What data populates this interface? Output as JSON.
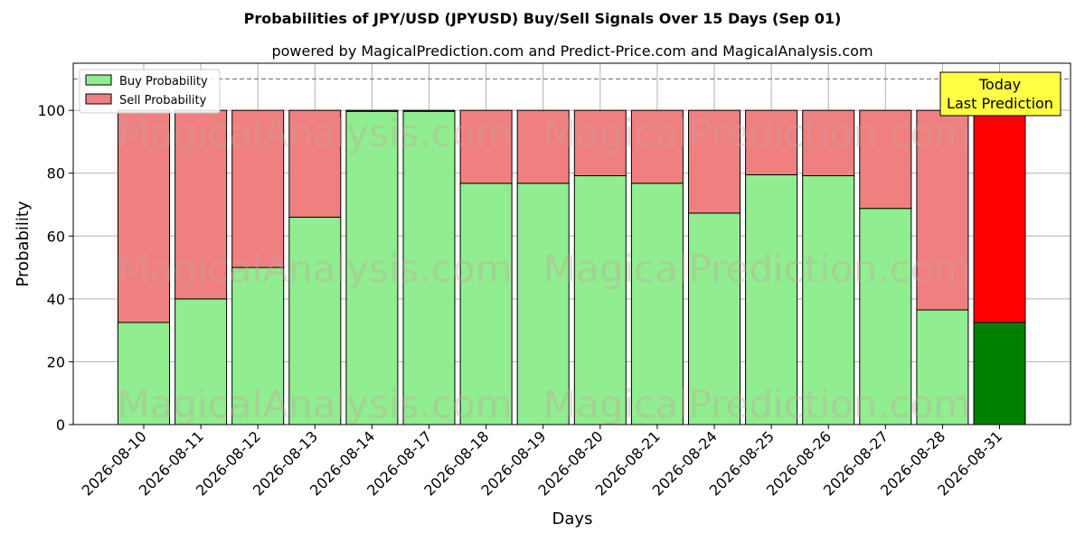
{
  "colors": {
    "buy": "#90ee90",
    "sell": "#f08080",
    "buy_last": "#008000",
    "sell_last": "#ff0000",
    "annotation_bg": "#ffff44"
  },
  "chart_data": {
    "type": "bar",
    "stacked": true,
    "title": "Probabilities of JPY/USD (JPYUSD) Buy/Sell Signals Over 15 Days (Sep 01)",
    "subtitle": "powered by MagicalPrediction.com and Predict-Price.com and MagicalAnalysis.com",
    "xlabel": "Days",
    "ylabel": "Probability",
    "ylim": [
      0,
      115
    ],
    "yticks": [
      0,
      20,
      40,
      60,
      80,
      100
    ],
    "grid": true,
    "legend_position": "top-left",
    "reference_line": 110,
    "categories": [
      "2026-08-10",
      "2026-08-11",
      "2026-08-12",
      "2026-08-13",
      "2026-08-14",
      "2026-08-17",
      "2026-08-18",
      "2026-08-19",
      "2026-08-20",
      "2026-08-21",
      "2026-08-24",
      "2026-08-25",
      "2026-08-26",
      "2026-08-27",
      "2026-08-28",
      "2026-08-31"
    ],
    "series": [
      {
        "name": "Buy Probability",
        "values": [
          32.5,
          40,
          50,
          66,
          99.7,
          99.7,
          76.8,
          76.8,
          79.2,
          76.8,
          67.3,
          79.5,
          79.2,
          68.8,
          36.5,
          32.5
        ]
      },
      {
        "name": "Sell Probability",
        "values": [
          67.5,
          60,
          50,
          34,
          0.3,
          0.3,
          23.2,
          23.2,
          20.8,
          23.2,
          32.7,
          20.5,
          20.8,
          31.2,
          63.5,
          67.5
        ]
      }
    ],
    "annotation": {
      "line1": "Today",
      "line2": "Last Prediction"
    },
    "watermarks": [
      "MagicalAnalysis.com",
      "MagicalPrediction.com"
    ]
  }
}
